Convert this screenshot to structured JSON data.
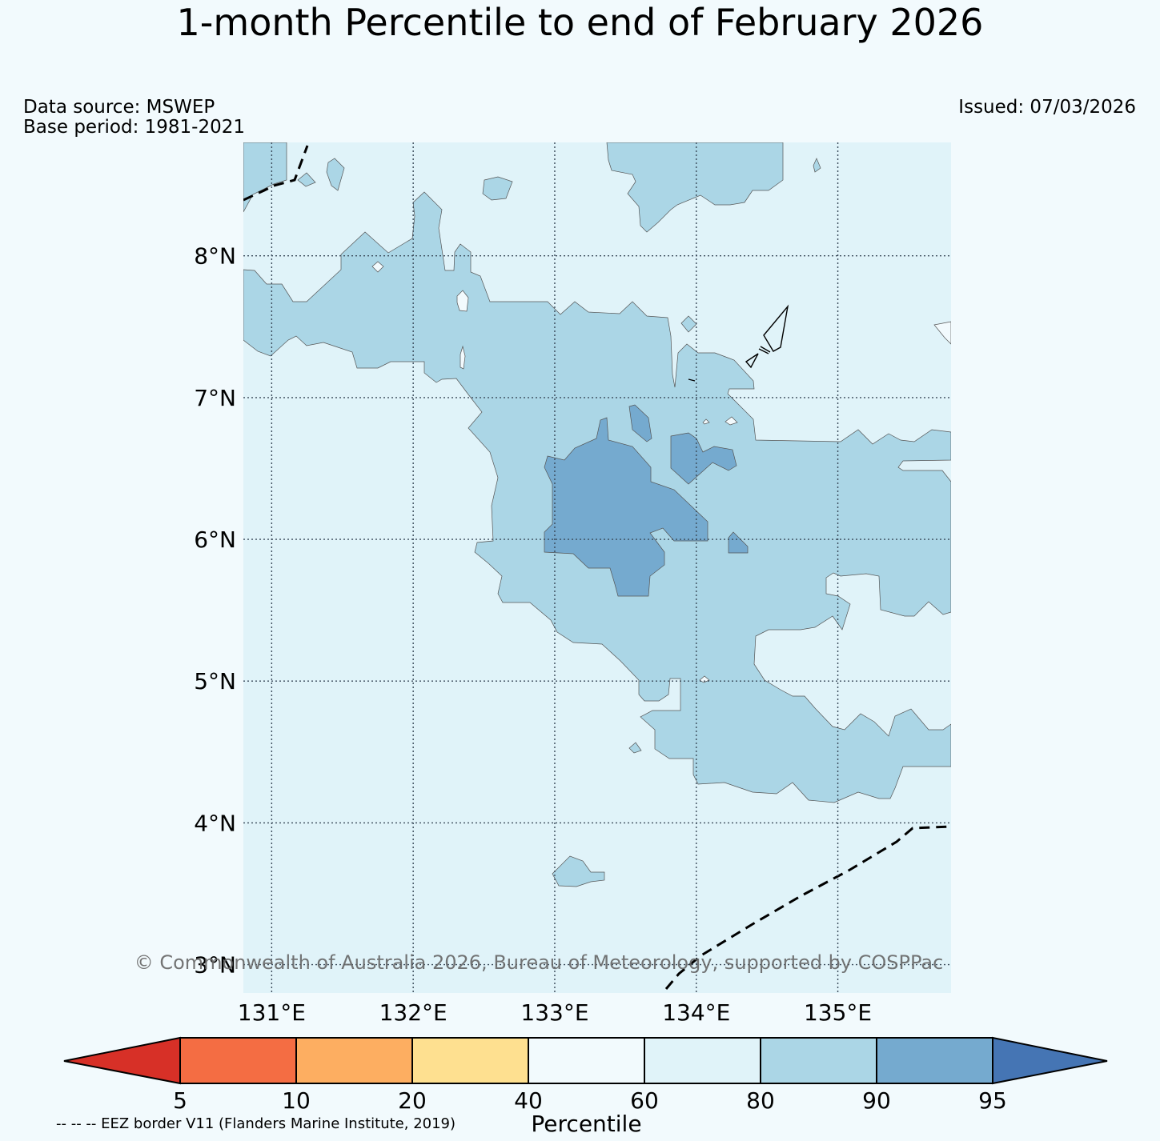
{
  "title": "1-month Percentile to end of February 2026",
  "data_source": "Data source: MSWEP",
  "base_period": "Base period: 1981-2021",
  "issued": "Issued: 07/03/2026",
  "copyright": "© Commonwealth of Australia 2026, Bureau of Meteorology, supported by COSPPac",
  "eez_note": "-- -- -- EEZ border V11 (Flanders Marine Institute, 2019)",
  "map": {
    "lon_range": [
      130.8,
      135.8
    ],
    "lat_range": [
      2.8,
      8.8
    ],
    "lat_ticks": [
      {
        "value": 8,
        "label": "8°N"
      },
      {
        "value": 7,
        "label": "7°N"
      },
      {
        "value": 6,
        "label": "6°N"
      },
      {
        "value": 5,
        "label": "5°N"
      },
      {
        "value": 4,
        "label": "4°N"
      },
      {
        "value": 3,
        "label": "3°N"
      }
    ],
    "lon_ticks": [
      {
        "value": 131,
        "label": "131°E"
      },
      {
        "value": 132,
        "label": "132°E"
      },
      {
        "value": 133,
        "label": "133°E"
      },
      {
        "value": 134,
        "label": "134°E"
      },
      {
        "value": 135,
        "label": "135°E"
      }
    ],
    "background_class": "60-80",
    "regions": [
      {
        "class": "80-90",
        "color": "#abd6e6"
      },
      {
        "class": "90-95",
        "color": "#75aacf"
      },
      {
        "class": "40-60",
        "color": "#f2fafd"
      }
    ]
  },
  "colorbar": {
    "title": "Percentile",
    "ticks": [
      "5",
      "10",
      "20",
      "40",
      "60",
      "80",
      "90",
      "95"
    ],
    "colors": {
      "below_5": "#d73027",
      "5_10": "#f46d43",
      "10_20": "#fdae61",
      "20_40": "#fee090",
      "40_60": "#f2fafd",
      "60_80": "#e0f3f9",
      "80_90": "#abd6e6",
      "90_95": "#75aacf",
      "above_95": "#4575b4"
    }
  }
}
